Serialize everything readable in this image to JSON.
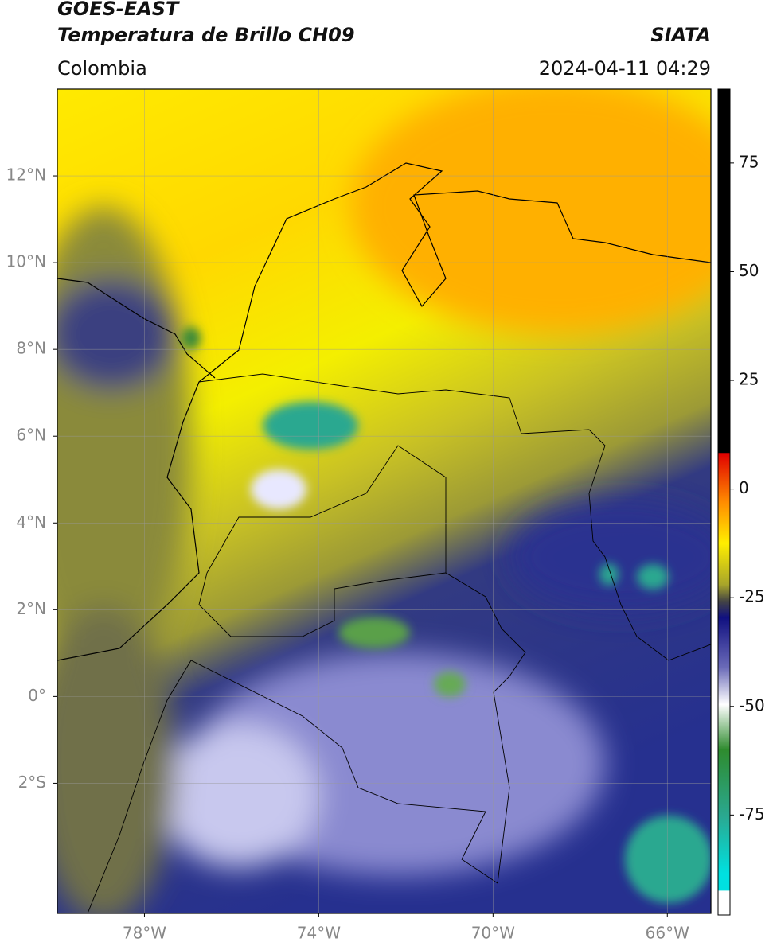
{
  "header": {
    "title": "GOES-EAST",
    "subtitle": "Temperatura de Brillo CH09",
    "source": "SIATA",
    "region": "Colombia",
    "datetime": "2024-04-11 04:29"
  },
  "map": {
    "xlim": [
      -80,
      -65
    ],
    "ylim": [
      -5,
      14
    ],
    "xticks": [
      {
        "value": -78,
        "label": "78°W"
      },
      {
        "value": -74,
        "label": "74°W"
      },
      {
        "value": -70,
        "label": "70°W"
      },
      {
        "value": -66,
        "label": "66°W"
      }
    ],
    "yticks": [
      {
        "value": 12,
        "label": "12°N"
      },
      {
        "value": 10,
        "label": "10°N"
      },
      {
        "value": 8,
        "label": "8°N"
      },
      {
        "value": 6,
        "label": "6°N"
      },
      {
        "value": 4,
        "label": "4°N"
      },
      {
        "value": 2,
        "label": "2°N"
      },
      {
        "value": 0,
        "label": "0°"
      },
      {
        "value": -2,
        "label": "2°S"
      }
    ],
    "grid": true
  },
  "colorbar": {
    "range": [
      -98,
      92
    ],
    "ticks": [
      75,
      50,
      25,
      0,
      -25,
      -50,
      -75
    ]
  }
}
